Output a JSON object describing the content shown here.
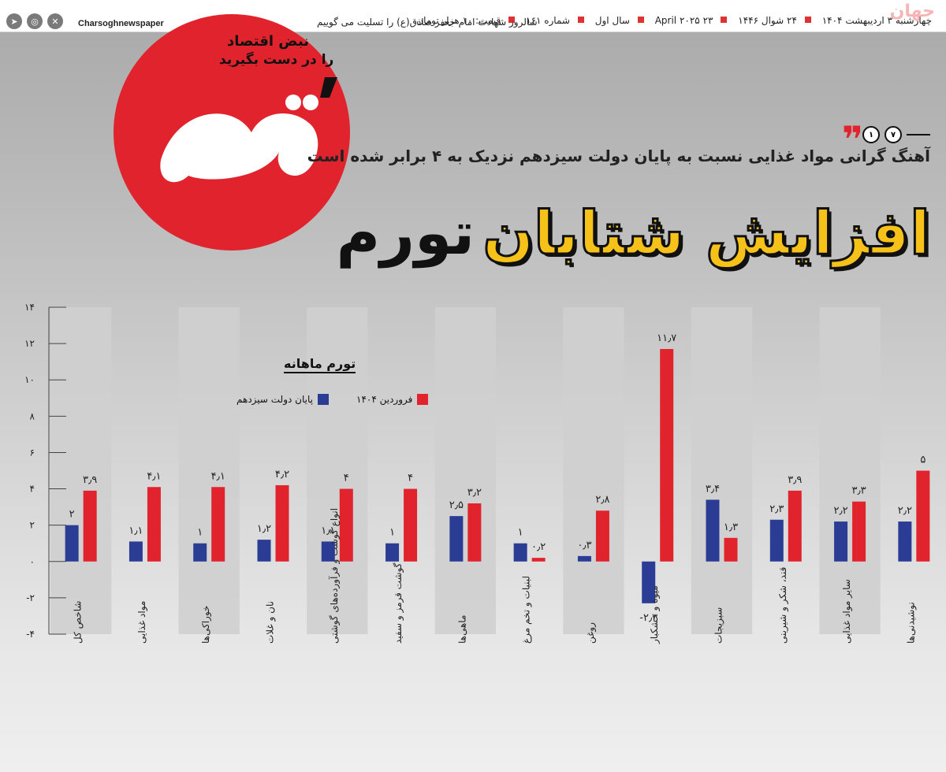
{
  "watermark": "جهان",
  "masthead": {
    "date_fa": "چهارشنبه ۳ اردیبهشت ۱۴۰۴",
    "date_hijri": "۲۴ شوال ۱۴۴۶",
    "date_en": "۲۳ April ۲۰۲۵",
    "year": "سال اول",
    "issue": "شماره ۱۶۱",
    "price": "قیمت: ۱۰ هزار تومان",
    "condolence": "سالروز شهادت امام جعفر صادق(ع) را تسلیت می گوییم",
    "handle": "Charsoghnewspaper",
    "social": [
      "telegram-icon",
      "instagram-icon",
      "x-icon"
    ]
  },
  "logo": {
    "name": "چارسوق",
    "slogan_line1": "نبض اقتصاد",
    "slogan_line2": "را در دست بگیرید"
  },
  "kicker": {
    "num1": "۱",
    "num2": "۷"
  },
  "subtitle": "آهنگ گرانی مواد غذایی نسبت به پایان دولت سیزدهم نزدیک به ۴ برابر شده است",
  "headline": {
    "part1": "افزایش شتابان",
    "part2": "تورم"
  },
  "colors": {
    "red": "#e0232c",
    "blue": "#2b3c94",
    "yellow": "#f6c21a"
  },
  "chart_data": {
    "type": "bar",
    "title": "تورم ماهانه",
    "ylim": [
      -4,
      14
    ],
    "yticks": [
      -4,
      -2,
      0,
      2,
      4,
      6,
      8,
      10,
      12,
      14
    ],
    "ytick_labels": [
      "-۴",
      "-۲",
      "۰",
      "۲",
      "۴",
      "۶",
      "۸",
      "۱۰",
      "۱۲",
      "۱۴"
    ],
    "categories": [
      "نوشیدنی‌ها",
      "سایر مواد غذایی",
      "قند، شکر و شیرینی",
      "سبزیجات",
      "میوه و خشکبار",
      "روغن",
      "لبنیات و تخم مرغ",
      "ماهی‌ها",
      "گوشت قرمز و سفید",
      "انواع گوشت و فرآورده‌های گوشتی",
      "نان و غلات",
      "خوراکی‌ها",
      "مواد غذایی",
      "شاخص کل"
    ],
    "series": [
      {
        "name": "پایان دولت سیزدهم",
        "color": "#2b3c94",
        "values": [
          2.2,
          2.2,
          2.3,
          3.4,
          -2.3,
          0.3,
          1,
          2.5,
          1,
          1.1,
          1.2,
          1,
          1.1,
          2
        ],
        "labels": [
          "۲٫۲",
          "۲٫۲",
          "۲٫۳",
          "۳٫۴",
          "-۲٫۳",
          "۰٫۳",
          "۱",
          "۲٫۵",
          "۱",
          "۱٫۱",
          "۱٫۲",
          "۱",
          "۱٫۱",
          "۲"
        ]
      },
      {
        "name": "فروردین ۱۴۰۴",
        "color": "#e0232c",
        "values": [
          5,
          3.3,
          3.9,
          1.3,
          11.7,
          2.8,
          0.2,
          3.2,
          4,
          4,
          4.2,
          4.1,
          4.1,
          3.9
        ],
        "labels": [
          "۵",
          "۳٫۳",
          "۳٫۹",
          "۱٫۳",
          "۱۱٫۷",
          "۲٫۸",
          "۰٫۲",
          "۳٫۲",
          "۴",
          "۴",
          "۴٫۲",
          "۴٫۱",
          "۴٫۱",
          "۳٫۹"
        ]
      }
    ],
    "legend": [
      "فروردین ۱۴۰۴",
      "پایان دولت سیزدهم"
    ],
    "grid": false
  }
}
